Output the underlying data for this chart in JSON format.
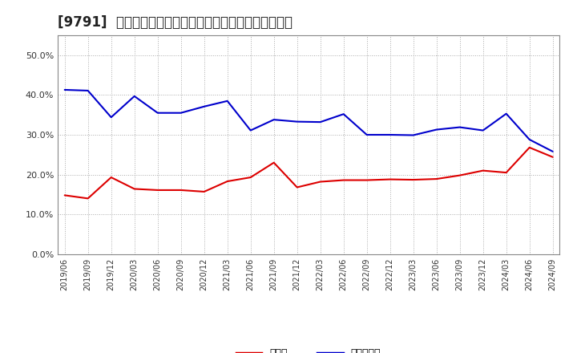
{
  "title": "[9791]  現預金、有利子負債の総資産に対する比率の推移",
  "x_labels": [
    "2019/06",
    "2019/09",
    "2019/12",
    "2020/03",
    "2020/06",
    "2020/09",
    "2020/12",
    "2021/03",
    "2021/06",
    "2021/09",
    "2021/12",
    "2022/03",
    "2022/06",
    "2022/09",
    "2022/12",
    "2023/03",
    "2023/06",
    "2023/09",
    "2023/12",
    "2024/03",
    "2024/06",
    "2024/09"
  ],
  "cash": [
    0.148,
    0.14,
    0.193,
    0.164,
    0.161,
    0.161,
    0.157,
    0.183,
    0.193,
    0.23,
    0.168,
    0.182,
    0.186,
    0.186,
    0.188,
    0.187,
    0.189,
    0.198,
    0.21,
    0.205,
    0.268,
    0.244
  ],
  "debt": [
    0.413,
    0.411,
    0.344,
    0.397,
    0.355,
    0.355,
    0.371,
    0.385,
    0.311,
    0.338,
    0.333,
    0.332,
    0.352,
    0.3,
    0.3,
    0.299,
    0.313,
    0.319,
    0.311,
    0.353,
    0.288,
    0.258
  ],
  "cash_color": "#dd0000",
  "debt_color": "#0000cc",
  "bg_color": "#ffffff",
  "plot_bg_color": "#ffffff",
  "grid_color": "#aaaaaa",
  "ylim": [
    0.0,
    0.55
  ],
  "yticks": [
    0.0,
    0.1,
    0.2,
    0.3,
    0.4,
    0.5
  ],
  "legend_cash": "現預金",
  "legend_debt": "有利子負債",
  "title_fontsize": 12
}
